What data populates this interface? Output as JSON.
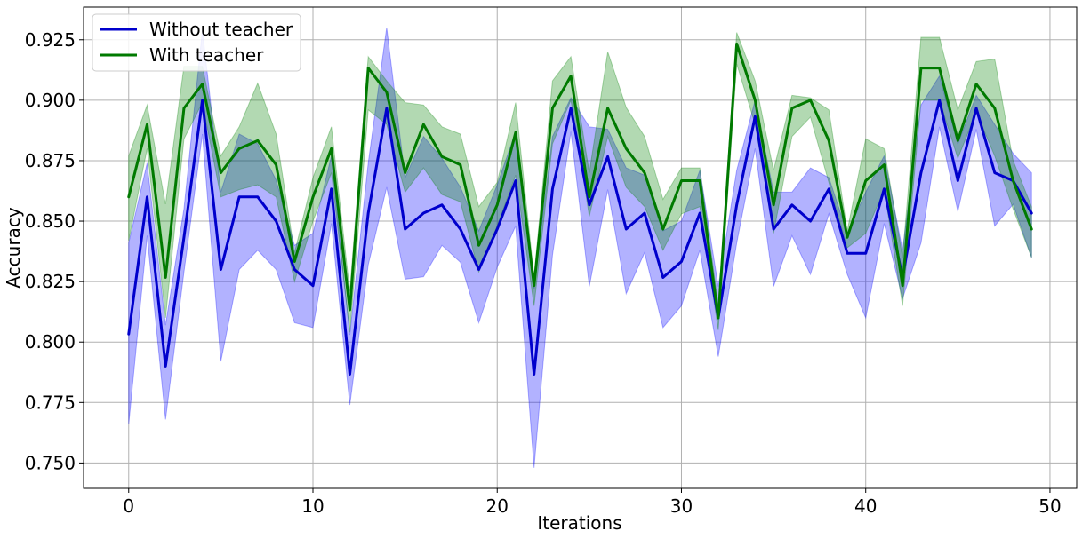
{
  "chart_data": {
    "type": "line",
    "title": "",
    "xlabel": "Iterations",
    "ylabel": "Accuracy",
    "xlim": [
      -2.45,
      51.45
    ],
    "ylim": [
      0.7395,
      0.9385
    ],
    "xticks": [
      0,
      10,
      20,
      30,
      40,
      50
    ],
    "yticks": [
      0.75,
      0.775,
      0.8,
      0.825,
      0.85,
      0.875,
      0.9,
      0.925
    ],
    "xtick_labels": [
      "0",
      "10",
      "20",
      "30",
      "40",
      "50"
    ],
    "ytick_labels": [
      "0.750",
      "0.775",
      "0.800",
      "0.825",
      "0.850",
      "0.875",
      "0.900",
      "0.925"
    ],
    "grid": true,
    "legend_position": "top-left",
    "x": [
      0,
      1,
      2,
      3,
      4,
      5,
      6,
      7,
      8,
      9,
      10,
      11,
      12,
      13,
      14,
      15,
      16,
      17,
      18,
      19,
      20,
      21,
      22,
      23,
      24,
      25,
      26,
      27,
      28,
      29,
      30,
      31,
      32,
      33,
      34,
      35,
      36,
      37,
      38,
      39,
      40,
      41,
      42,
      43,
      44,
      45,
      46,
      47,
      48,
      49
    ],
    "series": [
      {
        "name": "Without teacher",
        "color": "#0000cc",
        "band_color": "#0000ff",
        "values": [
          0.8033,
          0.86,
          0.79,
          0.8433,
          0.9,
          0.83,
          0.86,
          0.86,
          0.85,
          0.83,
          0.8233,
          0.8633,
          0.7867,
          0.8533,
          0.8967,
          0.8467,
          0.8533,
          0.8567,
          0.8467,
          0.83,
          0.8467,
          0.8667,
          0.7867,
          0.8633,
          0.8967,
          0.8567,
          0.8767,
          0.8467,
          0.8533,
          0.8267,
          0.8333,
          0.8533,
          0.81,
          0.8567,
          0.8933,
          0.8467,
          0.8567,
          0.85,
          0.8633,
          0.8367,
          0.8367,
          0.8633,
          0.8267,
          0.87,
          0.9,
          0.8667,
          0.8967,
          0.87,
          0.8667,
          0.8533
        ],
        "lower": [
          0.766,
          0.844,
          0.768,
          0.829,
          0.886,
          0.792,
          0.83,
          0.838,
          0.83,
          0.808,
          0.806,
          0.849,
          0.774,
          0.832,
          0.864,
          0.826,
          0.827,
          0.84,
          0.833,
          0.808,
          0.831,
          0.848,
          0.748,
          0.836,
          0.887,
          0.823,
          0.863,
          0.82,
          0.837,
          0.806,
          0.815,
          0.838,
          0.794,
          0.841,
          0.88,
          0.823,
          0.844,
          0.828,
          0.853,
          0.828,
          0.81,
          0.849,
          0.818,
          0.841,
          0.889,
          0.854,
          0.888,
          0.848,
          0.857,
          0.835
        ],
        "upper": [
          0.841,
          0.874,
          0.807,
          0.855,
          0.929,
          0.862,
          0.886,
          0.882,
          0.867,
          0.84,
          0.845,
          0.877,
          0.803,
          0.874,
          0.93,
          0.868,
          0.885,
          0.876,
          0.864,
          0.846,
          0.865,
          0.887,
          0.822,
          0.885,
          0.901,
          0.889,
          0.888,
          0.872,
          0.869,
          0.846,
          0.85,
          0.871,
          0.823,
          0.871,
          0.9,
          0.862,
          0.862,
          0.872,
          0.868,
          0.845,
          0.862,
          0.877,
          0.838,
          0.898,
          0.91,
          0.882,
          0.902,
          0.89,
          0.878,
          0.87
        ]
      },
      {
        "name": "With teacher",
        "color": "#007a00",
        "band_color": "#008000",
        "values": [
          0.86,
          0.89,
          0.8267,
          0.8967,
          0.9067,
          0.87,
          0.88,
          0.8833,
          0.8733,
          0.8333,
          0.86,
          0.88,
          0.8133,
          0.9133,
          0.9033,
          0.87,
          0.89,
          0.8767,
          0.8733,
          0.84,
          0.8567,
          0.8867,
          0.8233,
          0.8967,
          0.91,
          0.86,
          0.8967,
          0.88,
          0.87,
          0.8467,
          0.8667,
          0.8667,
          0.81,
          0.9233,
          0.9,
          0.8567,
          0.8967,
          0.9,
          0.8833,
          0.8433,
          0.8667,
          0.8733,
          0.8233,
          0.9133,
          0.9133,
          0.8833,
          0.9067,
          0.8967,
          0.8667,
          0.8467
        ],
        "lower": [
          0.842,
          0.88,
          0.81,
          0.884,
          0.899,
          0.86,
          0.863,
          0.865,
          0.86,
          0.825,
          0.85,
          0.87,
          0.804,
          0.896,
          0.89,
          0.862,
          0.872,
          0.861,
          0.858,
          0.829,
          0.848,
          0.869,
          0.815,
          0.882,
          0.9,
          0.852,
          0.885,
          0.864,
          0.856,
          0.838,
          0.853,
          0.856,
          0.805,
          0.915,
          0.89,
          0.845,
          0.885,
          0.893,
          0.866,
          0.839,
          0.845,
          0.863,
          0.815,
          0.9,
          0.9,
          0.876,
          0.895,
          0.877,
          0.855,
          0.835
        ],
        "upper": [
          0.877,
          0.898,
          0.857,
          0.914,
          0.914,
          0.877,
          0.889,
          0.907,
          0.886,
          0.837,
          0.868,
          0.889,
          0.821,
          0.918,
          0.908,
          0.899,
          0.898,
          0.889,
          0.886,
          0.856,
          0.866,
          0.899,
          0.827,
          0.908,
          0.918,
          0.87,
          0.92,
          0.897,
          0.885,
          0.859,
          0.872,
          0.872,
          0.815,
          0.928,
          0.908,
          0.871,
          0.902,
          0.901,
          0.896,
          0.846,
          0.884,
          0.88,
          0.835,
          0.926,
          0.926,
          0.896,
          0.916,
          0.917,
          0.875,
          0.856
        ]
      }
    ]
  }
}
